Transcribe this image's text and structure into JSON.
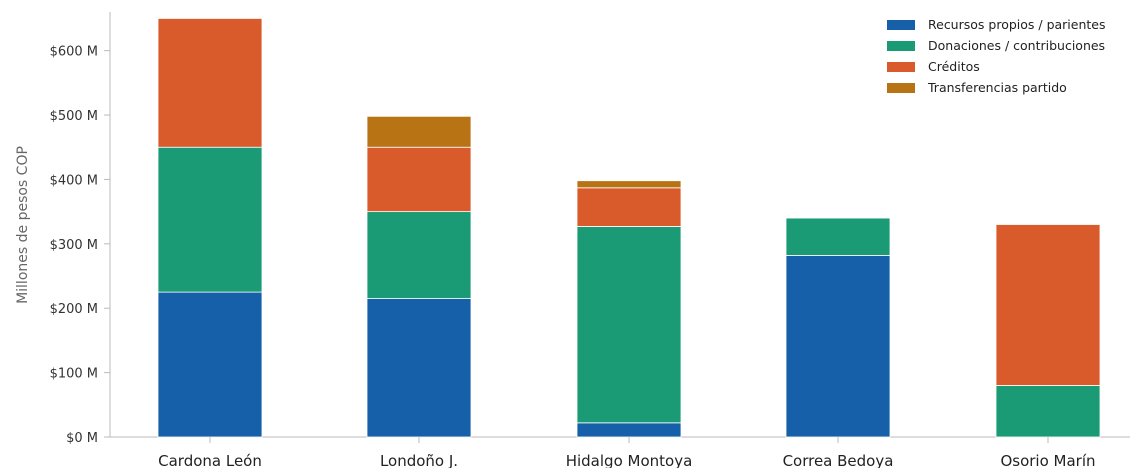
{
  "chart_data": {
    "type": "bar",
    "stacked": true,
    "title": "",
    "xlabel": "",
    "ylabel": "Millones de pesos COP",
    "ylim": [
      0,
      660
    ],
    "yticks": [
      0,
      100,
      200,
      300,
      400,
      500,
      600
    ],
    "ytick_labels": [
      "$0 M",
      "$100 M",
      "$200 M",
      "$300 M",
      "$400 M",
      "$500 M",
      "$600 M"
    ],
    "categories": [
      "Cardona León",
      "Londoño J.",
      "Hidalgo Montoya",
      "Correa Bedoya",
      "Osorio Marín"
    ],
    "series": [
      {
        "name": "Recursos propios / parientes",
        "color": "#1560a8",
        "values": [
          225,
          215,
          22,
          282,
          0
        ]
      },
      {
        "name": "Donaciones / contribuciones",
        "color": "#1a9b75",
        "values": [
          225,
          135,
          305,
          58,
          80
        ]
      },
      {
        "name": "Créditos",
        "color": "#d95a2b",
        "values": [
          200,
          100,
          60,
          0,
          250
        ]
      },
      {
        "name": "Transferencias partido",
        "color": "#b87314",
        "values": [
          0,
          48,
          11,
          0,
          0
        ]
      }
    ],
    "legend_position": "top-right",
    "grid": false
  }
}
